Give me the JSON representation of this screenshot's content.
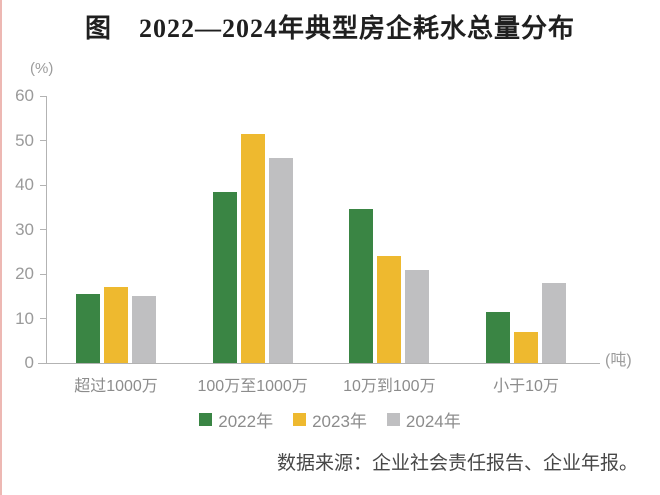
{
  "title": "图　2022—2024年典型房企耗水总量分布",
  "source": "数据来源：企业社会责任报告、企业年报。",
  "chart_data": {
    "type": "bar",
    "title": "图　2022—2024年典型房企耗水总量分布",
    "ylabel_unit": "(%)",
    "xlabel_unit": "(吨)",
    "categories": [
      "超过1000万",
      "100万至1000万",
      "10万到100万",
      "小于10万"
    ],
    "series": [
      {
        "name": "2022年",
        "color": "#3a8544",
        "values": [
          15.5,
          38.5,
          34.5,
          11.5
        ]
      },
      {
        "name": "2023年",
        "color": "#eeb92f",
        "values": [
          17,
          51.5,
          24,
          7
        ]
      },
      {
        "name": "2024年",
        "color": "#bfbfc1",
        "values": [
          15,
          46,
          21,
          18
        ]
      }
    ],
    "y_ticks": [
      0,
      10,
      20,
      30,
      40,
      50,
      60
    ],
    "ylim": [
      0,
      60
    ],
    "grid": false,
    "legend_position": "bottom"
  }
}
